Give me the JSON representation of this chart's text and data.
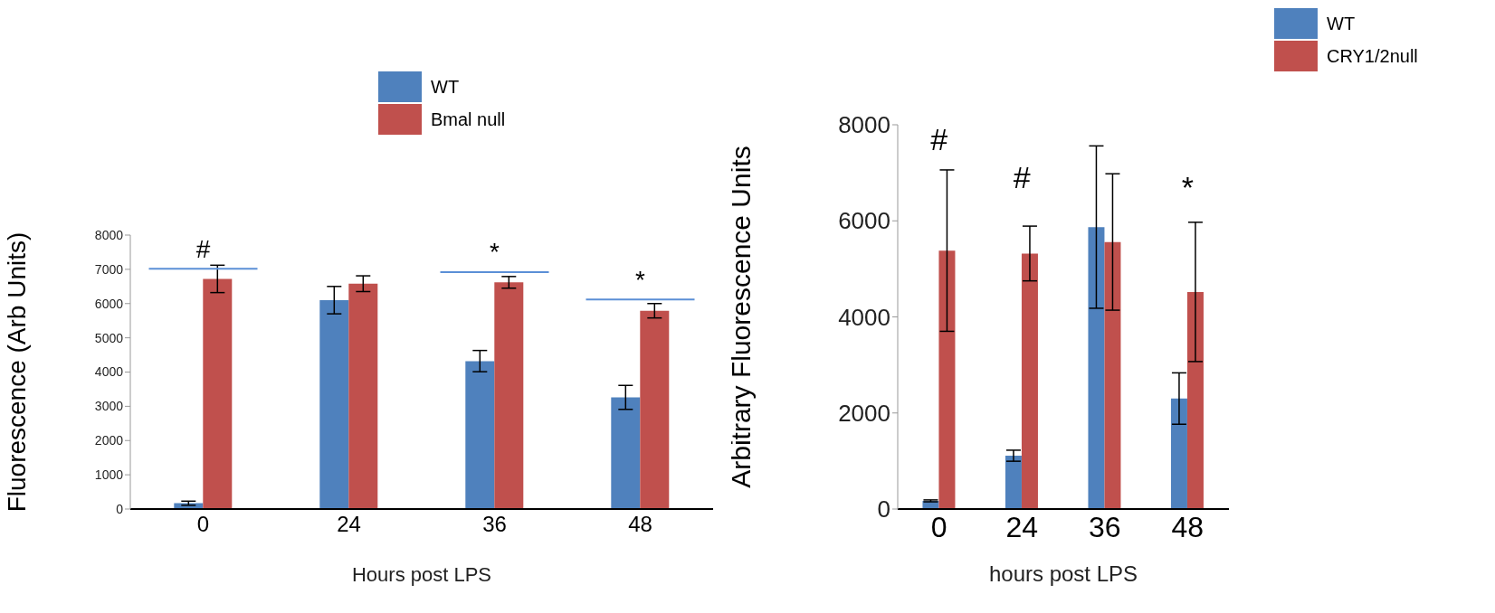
{
  "chart_data": [
    {
      "type": "bar",
      "categories": [
        "0",
        "24",
        "36",
        "48"
      ],
      "xlabel": "Hours post LPS",
      "ylabel": "Fluorescence (Arb Units)",
      "ylim": [
        0,
        8000
      ],
      "yticks": [
        0,
        1000,
        2000,
        3000,
        4000,
        5000,
        6000,
        7000,
        8000
      ],
      "legend": "top",
      "grid": false,
      "series": [
        {
          "name": "WT",
          "color": "#4f81bd",
          "values": [
            170,
            6100,
            4320,
            3260
          ],
          "errors": [
            60,
            400,
            310,
            350
          ]
        },
        {
          "name": "Bmal null",
          "color": "#c0504d",
          "values": [
            6720,
            6580,
            6620,
            5790
          ],
          "errors": [
            400,
            230,
            170,
            210
          ]
        }
      ],
      "annotations": [
        "#",
        "*",
        "*"
      ]
    },
    {
      "type": "bar",
      "categories": [
        "0",
        "24",
        "36",
        "48"
      ],
      "xlabel": "hours post LPS",
      "ylabel": "Arbitrary Fluorescence Units",
      "ylim": [
        0,
        8000
      ],
      "yticks": [
        0,
        2000,
        4000,
        6000,
        8000
      ],
      "legend": "top right",
      "grid": false,
      "series": [
        {
          "name": "WT",
          "color": "#4f81bd",
          "values": [
            170,
            1110,
            5870,
            2300
          ],
          "errors": [
            20,
            115,
            1690,
            535
          ]
        },
        {
          "name": "CRY1/2null",
          "color": "#c0504d",
          "values": [
            5380,
            5320,
            5560,
            4520
          ],
          "errors": [
            1680,
            570,
            1420,
            1450
          ]
        }
      ],
      "annotations": [
        "#",
        "#",
        "*"
      ]
    }
  ]
}
